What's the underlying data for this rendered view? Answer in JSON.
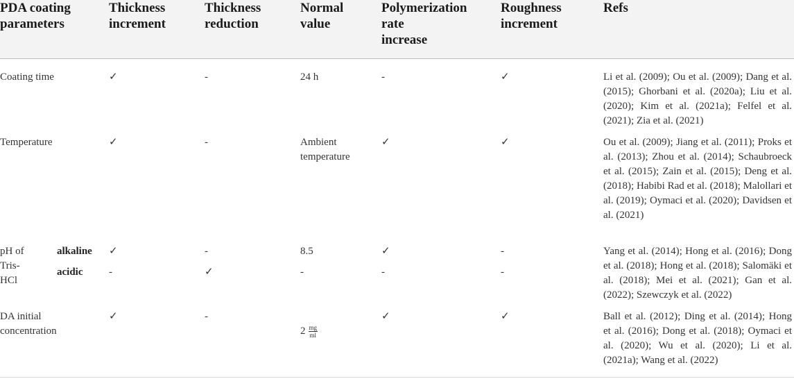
{
  "headers": {
    "param": "PDA coating\nparameters",
    "thick_inc": "Thickness\nincrement",
    "thick_red": "Thickness\nreduction",
    "normal": "Normal\nvalue",
    "poly": "Polymerization\nrate\nincrease",
    "rough": "Roughness\nincrement",
    "refs": "Refs"
  },
  "rows": {
    "time": {
      "param": "Coating time",
      "thick_inc": "✓",
      "thick_red": "-",
      "normal": "24 h",
      "poly": "-",
      "rough": "✓",
      "refs": "Li et al. (2009); Ou et al. (2009); Dang et al. (2015); Ghorbani et al. (2020a); Liu et al. (2020); Kim et al. (2021a); Felfel et al. (2021); Zia et al. (2021)"
    },
    "temp": {
      "param": "Temperature",
      "thick_inc": "✓",
      "thick_red": "-",
      "normal": "Ambient\ntemperature",
      "poly": "✓",
      "rough": "✓",
      "refs": "Ou et al. (2009); Jiang et al. (2011); Proks et al. (2013); Zhou et al. (2014); Schaubroeck et al. (2015); Zain et al. (2015); Deng et al. (2018); Habibi Rad et al. (2018); Malollari et al. (2019); Oymaci et al. (2020); Davidsen et al. (2021)"
    },
    "ph": {
      "param": "pH of\nTris-\nHCl",
      "alkaline": {
        "label": "alkaline",
        "thick_inc": "✓",
        "thick_red": "-",
        "normal": "8.5",
        "poly": "✓",
        "rough": "-"
      },
      "acidic": {
        "label": "acidic",
        "thick_inc": "-",
        "thick_red": "✓",
        "normal": "-",
        "poly": "-",
        "rough": "-"
      },
      "refs": "Yang et al. (2014); Hong et al. (2016); Dong et al. (2018); Hong et al. (2018); Salomäki et al. (2018); Mei et al. (2021); Gan et al. (2022); Szewczyk et al. (2022)"
    },
    "da": {
      "param": "DA initial\nconcentration",
      "thick_inc": "✓",
      "thick_red": "-",
      "normal_value": "2",
      "normal_unit_num": "mg",
      "normal_unit_den": "ml",
      "poly": "✓",
      "rough": "✓",
      "refs": "Ball et al. (2012); Ding et al. (2014); Hong et al. (2016); Dong et al. (2018); Oymaci et al. (2020); Wu et al. (2020); Li et al. (2021a); Wang et al. (2022)"
    }
  }
}
